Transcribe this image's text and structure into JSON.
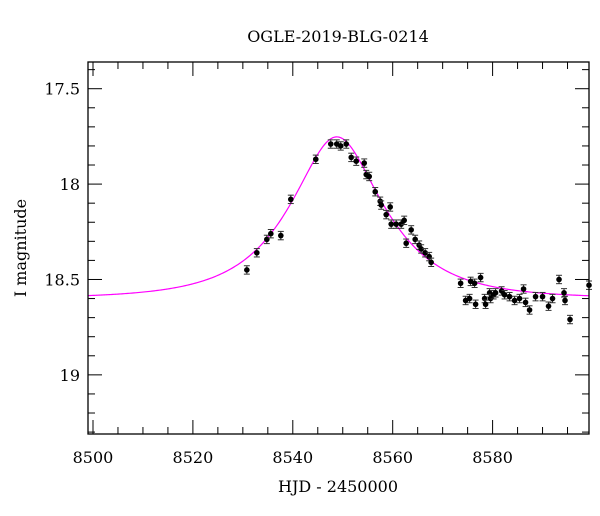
{
  "chart_data": {
    "type": "scatter",
    "title": "OGLE-2019-BLG-0214",
    "xlabel": "HJD - 2450000",
    "ylabel": "I magnitude",
    "xlim": [
      8499,
      8599.3
    ],
    "ylim": [
      17.36,
      19.31
    ],
    "y_inverted": true,
    "xticks": [
      8500,
      8520,
      8540,
      8560,
      8580
    ],
    "xtick_labels": [
      "8500",
      "8520",
      "8540",
      "8560",
      "8580"
    ],
    "yticks": [
      17.5,
      18,
      18.5,
      19
    ],
    "ytick_labels": [
      "17.5",
      "18",
      "18.5",
      "19"
    ],
    "grid": false,
    "series": [
      {
        "name": "data",
        "color": "#000000",
        "x": [
          8530.8,
          8532.8,
          8534.8,
          8535.6,
          8537.6,
          8539.6,
          8544.6,
          8547.6,
          8548.8,
          8549.6,
          8550.7,
          8551.7,
          8552.7,
          8554.3,
          8554.7,
          8555.3,
          8556.5,
          8557.5,
          8557.7,
          8558.7,
          8559.5,
          8559.7,
          8560.7,
          8561.7,
          8562.3,
          8562.7,
          8563.7,
          8564.5,
          8565.3,
          8565.7,
          8566.5,
          8567.3,
          8567.7,
          8573.6,
          8574.6,
          8575.4,
          8575.6,
          8576.4,
          8576.6,
          8577.6,
          8578.4,
          8578.6,
          8579.4,
          8579.6,
          8580.2,
          8580.6,
          8581.8,
          8582.4,
          8583.4,
          8584.4,
          8585.4,
          8586.2,
          8586.6,
          8587.4,
          8588.6,
          8590.0,
          8591.2,
          8592.0,
          8593.3,
          8594.3,
          8594.5,
          8595.5,
          8599.3
        ],
        "y": [
          18.45,
          18.36,
          18.29,
          18.26,
          18.27,
          18.08,
          17.87,
          17.79,
          17.79,
          17.8,
          17.79,
          17.86,
          17.88,
          17.89,
          17.95,
          17.96,
          18.04,
          18.09,
          18.11,
          18.16,
          18.12,
          18.21,
          18.21,
          18.21,
          18.19,
          18.31,
          18.24,
          18.29,
          18.32,
          18.34,
          18.36,
          18.38,
          18.41,
          18.52,
          18.61,
          18.6,
          18.51,
          18.52,
          18.63,
          18.49,
          18.6,
          18.63,
          18.57,
          18.6,
          18.58,
          18.57,
          18.56,
          18.58,
          18.59,
          18.61,
          18.6,
          18.55,
          18.62,
          18.66,
          18.59,
          18.59,
          18.64,
          18.6,
          18.5,
          18.57,
          18.61,
          18.71,
          18.53
        ],
        "yerr": 0.022
      },
      {
        "name": "model",
        "color": "#ff00ff",
        "kind": "paczynski",
        "t0": 8548.8,
        "u0": 0.5,
        "tE": 16,
        "baseline": 18.6
      }
    ]
  }
}
